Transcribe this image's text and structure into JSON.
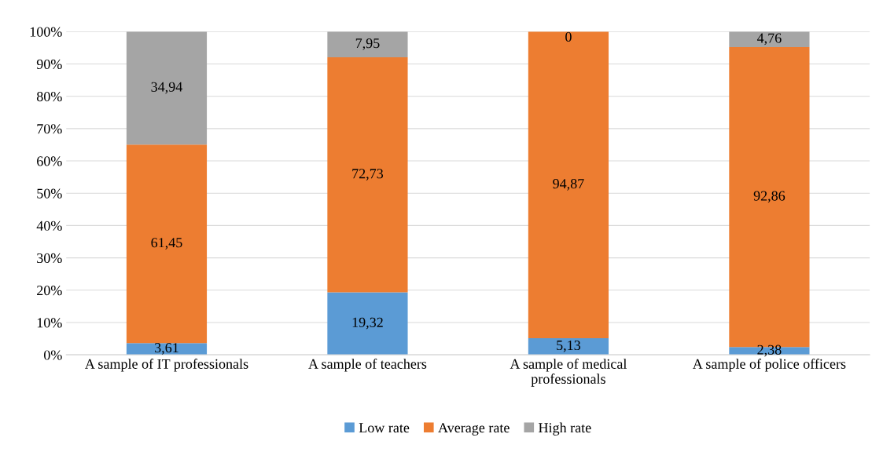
{
  "chart_data": {
    "type": "bar",
    "stacked": true,
    "categories": [
      "A sample of IT professionals",
      "A sample of teachers",
      "A sample of medical\nprofessionals",
      "A sample of police officers"
    ],
    "series": [
      {
        "name": "Low rate",
        "color": "#5b9bd5",
        "values": [
          3.61,
          19.32,
          5.13,
          2.38
        ],
        "value_labels": [
          "3,61",
          "19,32",
          "5,13",
          "2,38"
        ]
      },
      {
        "name": "Average rate",
        "color": "#ed7d31",
        "values": [
          61.45,
          72.73,
          94.87,
          92.86
        ],
        "value_labels": [
          "61,45",
          "72,73",
          "94,87",
          "92,86"
        ]
      },
      {
        "name": "High rate",
        "color": "#a5a5a5",
        "values": [
          34.94,
          7.95,
          0,
          4.76
        ],
        "value_labels": [
          "34,94",
          "7,95",
          "0",
          "4,76"
        ]
      }
    ],
    "ylim": [
      0,
      100
    ],
    "yticks": [
      {
        "value": 0,
        "label": "0%"
      },
      {
        "value": 10,
        "label": "10%"
      },
      {
        "value": 20,
        "label": "20%"
      },
      {
        "value": 30,
        "label": "30%"
      },
      {
        "value": 40,
        "label": "40%"
      },
      {
        "value": 50,
        "label": "50%"
      },
      {
        "value": 60,
        "label": "60%"
      },
      {
        "value": 70,
        "label": "70%"
      },
      {
        "value": 80,
        "label": "80%"
      },
      {
        "value": 90,
        "label": "90%"
      },
      {
        "value": 100,
        "label": "100%"
      }
    ],
    "grid": "y",
    "legend": "bottom"
  }
}
